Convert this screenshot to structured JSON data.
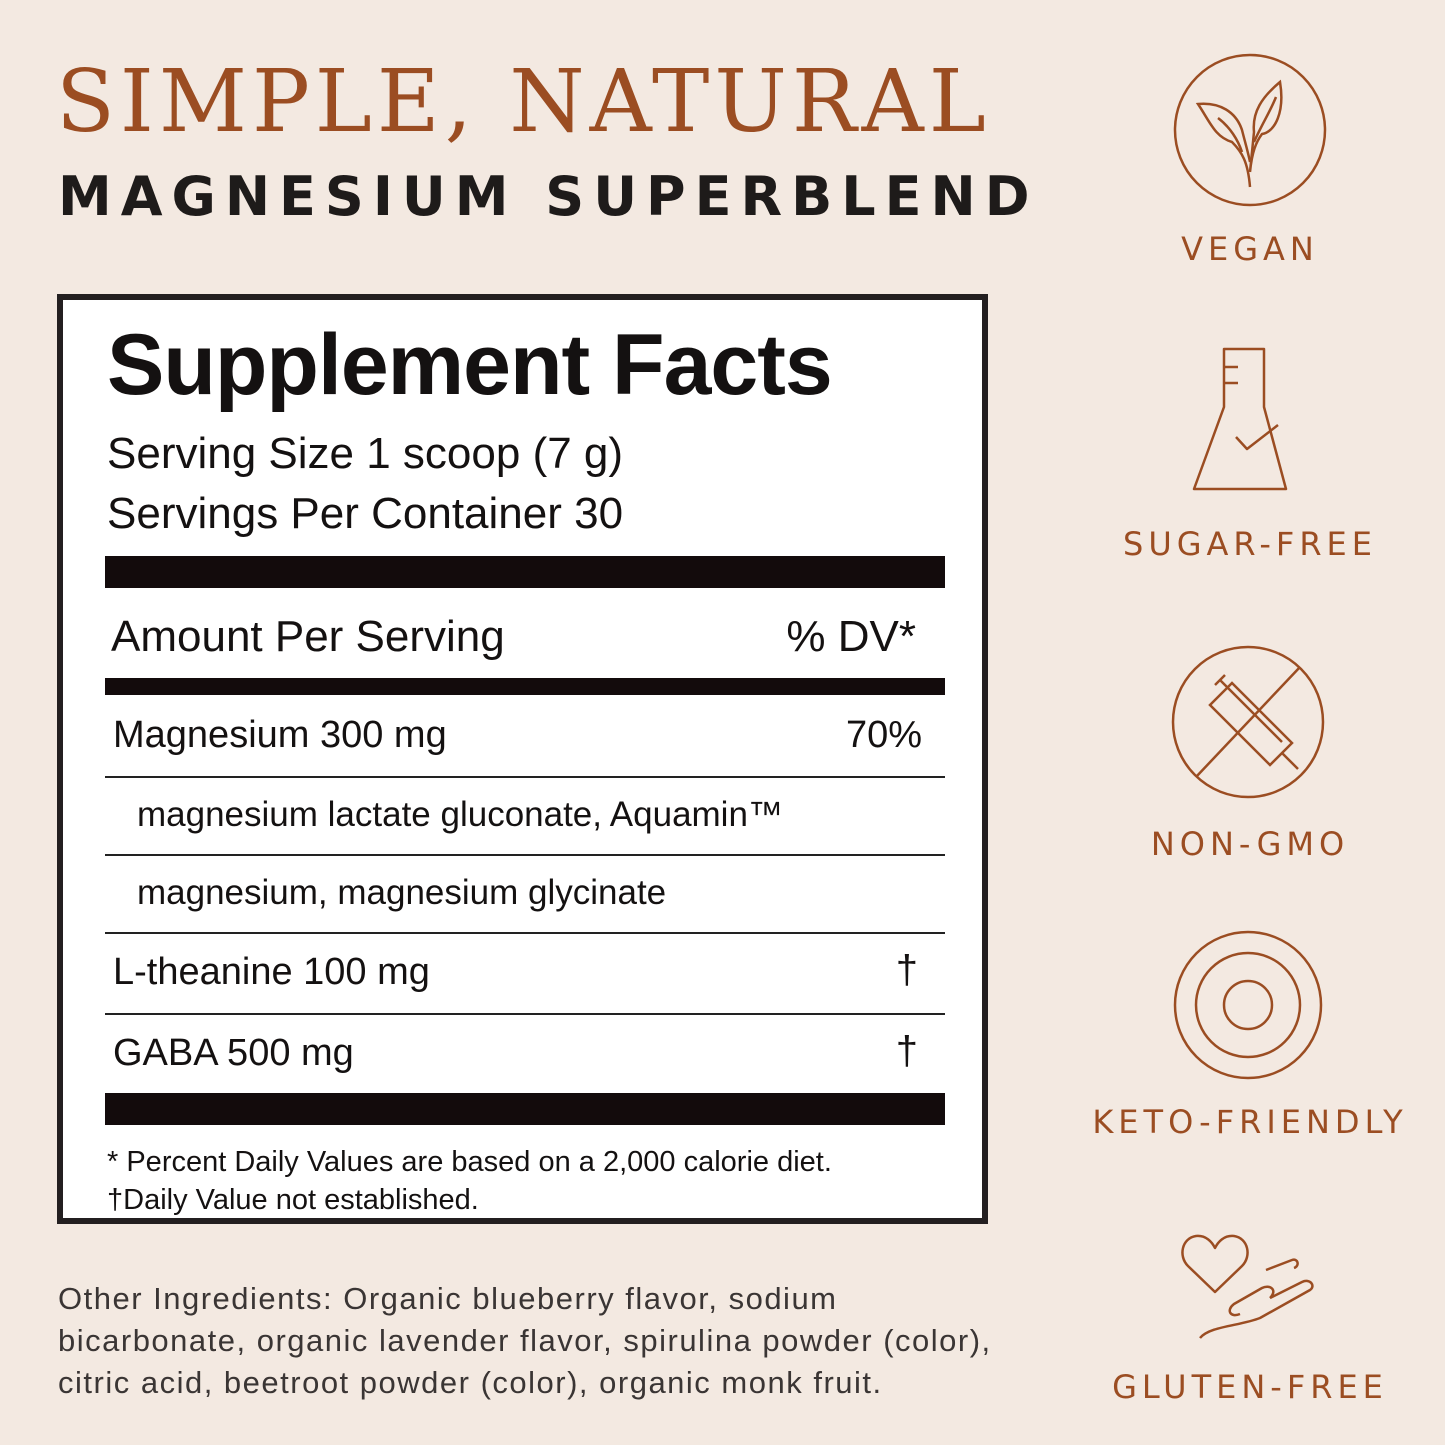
{
  "header": {
    "title": "SIMPLE, NATURAL",
    "subtitle": "MAGNESIUM SUPERBLEND"
  },
  "facts": {
    "title": "Supplement Facts",
    "serving_size": "Serving Size 1 scoop (7 g)",
    "servings_per_container": "Servings Per Container 30",
    "amount_header": "Amount Per Serving",
    "dv_header": "% DV*",
    "rows": [
      {
        "name": "Magnesium 300 mg",
        "dv": "70%"
      },
      {
        "name": "magnesium lactate gluconate, Aquamin™",
        "dv": ""
      },
      {
        "name": "magnesium, magnesium glycinate",
        "dv": ""
      },
      {
        "name": "L-theanine 100 mg",
        "dv": "†"
      },
      {
        "name": "GABA 500 mg",
        "dv": "†"
      }
    ],
    "footnote1": "* Percent Daily Values are based on a 2,000 calorie diet.",
    "footnote2": "†Daily Value not established."
  },
  "other_ingredients": [
    "Other Ingredients: Organic blueberry flavor, sodium",
    "bicarbonate, organic lavender flavor, spirulina powder (color),",
    "citric acid, beetroot powder (color), organic monk fruit."
  ],
  "badges": [
    {
      "label": "VEGAN",
      "icon": "leaf-sprout-icon"
    },
    {
      "label": "SUGAR-FREE",
      "icon": "flask-check-icon"
    },
    {
      "label": "NON-GMO",
      "icon": "crossed-syringe-icon"
    },
    {
      "label": "KETO-FRIENDLY",
      "icon": "concentric-circles-icon"
    },
    {
      "label": "GLUTEN-FREE",
      "icon": "heart-hand-icon"
    }
  ],
  "colors": {
    "accent": "#9b4d22",
    "background": "#f3e9e1",
    "text": "#1e1b1a"
  }
}
